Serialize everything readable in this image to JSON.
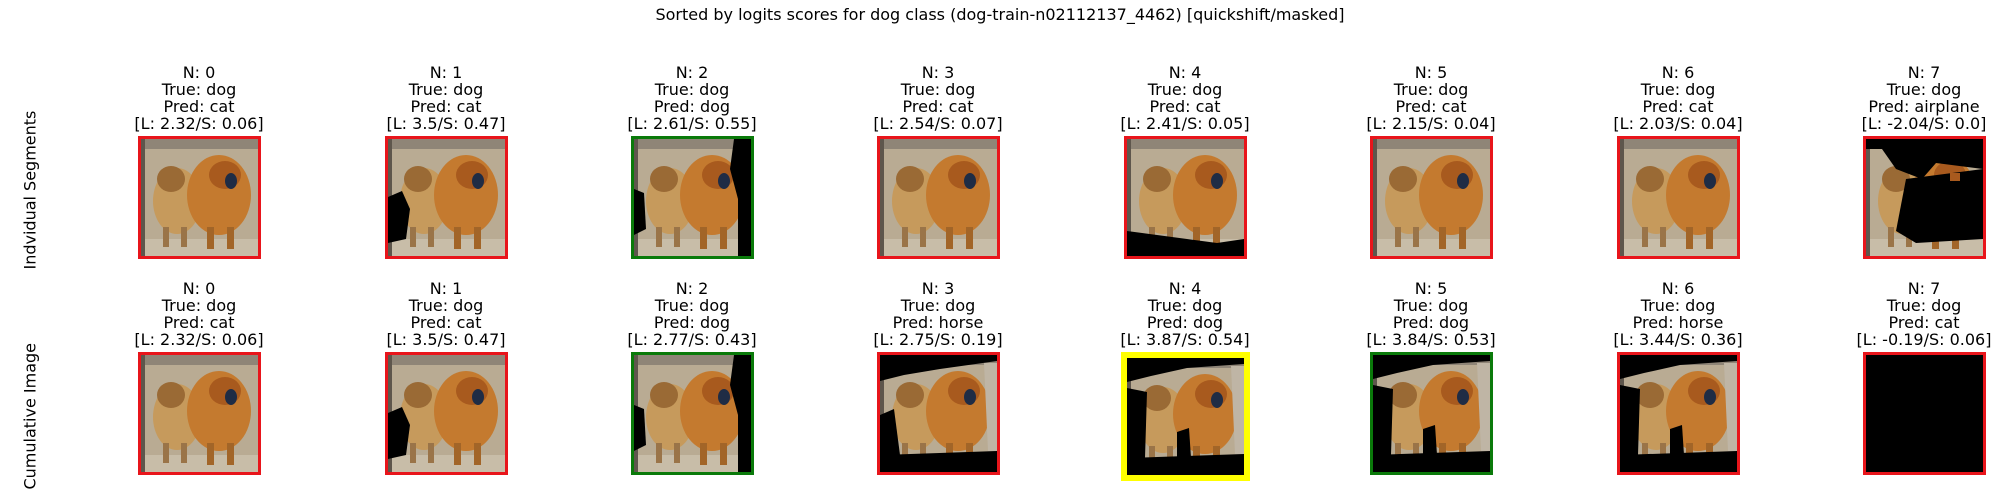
{
  "figure": {
    "title": "Sorted by logits scores for dog class (dog-train-n02112137_4462) [quickshift/masked]",
    "row_labels": [
      "Indvidual Segments",
      "Cumulative Image"
    ]
  },
  "border_colors": {
    "red": "#e8151b",
    "green": "#0a7a0a",
    "yellow": "#ffff00"
  },
  "chart_data": [
    {
      "type": "image-grid",
      "row": "Indvidual Segments",
      "panels": [
        {
          "n": "N: 0",
          "true": "True: dog",
          "pred": "Pred: cat",
          "score": "[L: 2.32/S: 0.06]",
          "border": "red",
          "mask": "none"
        },
        {
          "n": "N: 1",
          "true": "True: dog",
          "pred": "Pred: cat",
          "score": "[L: 3.5/S: 0.47]",
          "border": "red",
          "mask": "left"
        },
        {
          "n": "N: 2",
          "true": "True: dog",
          "pred": "Pred: dog",
          "score": "[L: 2.61/S: 0.55]",
          "border": "green",
          "mask": "rightleft"
        },
        {
          "n": "N: 3",
          "true": "True: dog",
          "pred": "Pred: cat",
          "score": "[L: 2.54/S: 0.07]",
          "border": "red",
          "mask": "none"
        },
        {
          "n": "N: 4",
          "true": "True: dog",
          "pred": "Pred: cat",
          "score": "[L: 2.41/S: 0.05]",
          "border": "red",
          "mask": "bottom"
        },
        {
          "n": "N: 5",
          "true": "True: dog",
          "pred": "Pred: cat",
          "score": "[L: 2.15/S: 0.04]",
          "border": "red",
          "mask": "none"
        },
        {
          "n": "N: 6",
          "true": "True: dog",
          "pred": "Pred: cat",
          "score": "[L: 2.03/S: 0.04]",
          "border": "red",
          "mask": "none"
        },
        {
          "n": "N: 7",
          "true": "True: dog",
          "pred": "Pred: airplane",
          "score": "[L: -2.04/S: 0.0]",
          "border": "red",
          "mask": "mostly"
        }
      ]
    },
    {
      "type": "image-grid",
      "row": "Cumulative Image",
      "panels": [
        {
          "n": "N: 0",
          "true": "True: dog",
          "pred": "Pred: cat",
          "score": "[L: 2.32/S: 0.06]",
          "border": "red",
          "mask": "none"
        },
        {
          "n": "N: 1",
          "true": "True: dog",
          "pred": "Pred: cat",
          "score": "[L: 3.5/S: 0.47]",
          "border": "red",
          "mask": "left"
        },
        {
          "n": "N: 2",
          "true": "True: dog",
          "pred": "Pred: dog",
          "score": "[L: 2.77/S: 0.43]",
          "border": "green",
          "mask": "rightleft"
        },
        {
          "n": "N: 3",
          "true": "True: dog",
          "pred": "Pred: horse",
          "score": "[L: 2.75/S: 0.19]",
          "border": "red",
          "mask": "cum3"
        },
        {
          "n": "N: 4",
          "true": "True: dog",
          "pred": "Pred: dog",
          "score": "[L: 3.87/S: 0.54]",
          "border": "yellow",
          "mask": "cum4"
        },
        {
          "n": "N: 5",
          "true": "True: dog",
          "pred": "Pred: dog",
          "score": "[L: 3.84/S: 0.53]",
          "border": "green",
          "mask": "cum4"
        },
        {
          "n": "N: 6",
          "true": "True: dog",
          "pred": "Pred: horse",
          "score": "[L: 3.44/S: 0.36]",
          "border": "red",
          "mask": "cum4"
        },
        {
          "n": "N: 7",
          "true": "True: dog",
          "pred": "Pred: cat",
          "score": "[L: -0.19/S: 0.06]",
          "border": "red",
          "mask": "all"
        }
      ]
    }
  ]
}
